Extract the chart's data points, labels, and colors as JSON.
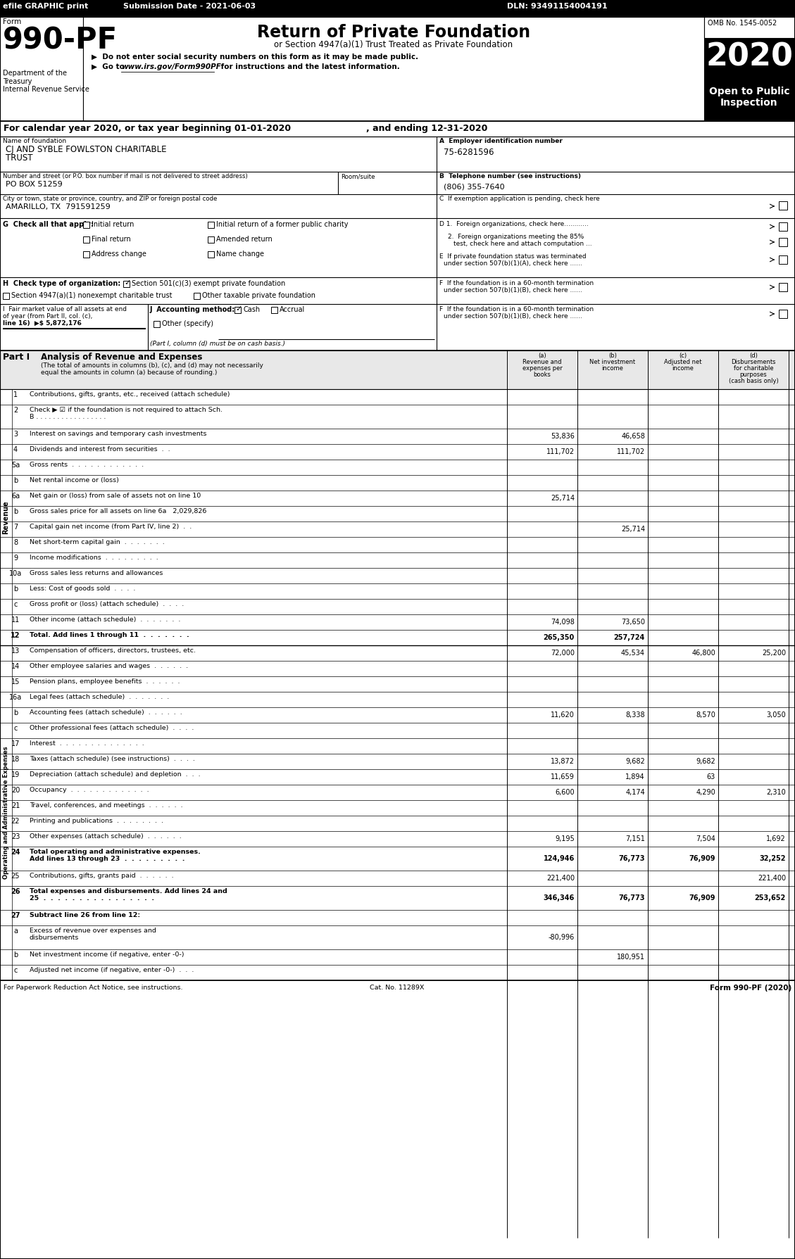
{
  "title_bar": {
    "efile": "efile GRAPHIC print",
    "submission": "Submission Date - 2021-06-03",
    "dln": "DLN: 93491154004191"
  },
  "revenue_rows": [
    {
      "num": "1",
      "label": "Contributions, gifts, grants, etc., received (attach schedule)",
      "a": "",
      "b": "",
      "c": "",
      "d": ""
    },
    {
      "num": "2",
      "label": "Check ▶ ☑ if the foundation is not required to attach Sch.\nB . . . . . . . . . . . . . . . . .",
      "a": "",
      "b": "",
      "c": "",
      "d": "",
      "tall": true
    },
    {
      "num": "3",
      "label": "Interest on savings and temporary cash investments",
      "a": "53,836",
      "b": "46,658",
      "c": "",
      "d": ""
    },
    {
      "num": "4",
      "label": "Dividends and interest from securities  .  .",
      "a": "111,702",
      "b": "111,702",
      "c": "",
      "d": ""
    },
    {
      "num": "5a",
      "label": "Gross rents  .  .  .  .  .  .  .  .  .  .  .  .",
      "a": "",
      "b": "",
      "c": "",
      "d": ""
    },
    {
      "num": "b",
      "label": "Net rental income or (loss)",
      "a": "",
      "b": "",
      "c": "",
      "d": ""
    },
    {
      "num": "6a",
      "label": "Net gain or (loss) from sale of assets not on line 10",
      "a": "25,714",
      "b": "",
      "c": "",
      "d": ""
    },
    {
      "num": "b",
      "label": "Gross sales price for all assets on line 6a   2,029,826",
      "a": "",
      "b": "",
      "c": "",
      "d": ""
    },
    {
      "num": "7",
      "label": "Capital gain net income (from Part IV, line 2)  .  .",
      "a": "",
      "b": "25,714",
      "c": "",
      "d": ""
    },
    {
      "num": "8",
      "label": "Net short-term capital gain  .  .  .  .  .  .  .",
      "a": "",
      "b": "",
      "c": "",
      "d": ""
    },
    {
      "num": "9",
      "label": "Income modifications  .  .  .  .  .  .  .  .  .",
      "a": "",
      "b": "",
      "c": "",
      "d": ""
    },
    {
      "num": "10a",
      "label": "Gross sales less returns and allowances",
      "a": "",
      "b": "",
      "c": "",
      "d": ""
    },
    {
      "num": "b",
      "label": "Less: Cost of goods sold  .  .  .  .",
      "a": "",
      "b": "",
      "c": "",
      "d": ""
    },
    {
      "num": "c",
      "label": "Gross profit or (loss) (attach schedule)  .  .  .  .",
      "a": "",
      "b": "",
      "c": "",
      "d": ""
    },
    {
      "num": "11",
      "label": "Other income (attach schedule)  .  .  .  .  .  .  .",
      "a": "74,098",
      "b": "73,650",
      "c": "",
      "d": ""
    },
    {
      "num": "12",
      "label": "Total. Add lines 1 through 11  .  .  .  .  .  .  .",
      "a": "265,350",
      "b": "257,724",
      "c": "",
      "d": "",
      "bold": true
    }
  ],
  "expense_rows": [
    {
      "num": "13",
      "label": "Compensation of officers, directors, trustees, etc.",
      "a": "72,000",
      "b": "45,534",
      "c": "46,800",
      "d": "25,200"
    },
    {
      "num": "14",
      "label": "Other employee salaries and wages  .  .  .  .  .  .",
      "a": "",
      "b": "",
      "c": "",
      "d": ""
    },
    {
      "num": "15",
      "label": "Pension plans, employee benefits  .  .  .  .  .  .",
      "a": "",
      "b": "",
      "c": "",
      "d": ""
    },
    {
      "num": "16a",
      "label": "Legal fees (attach schedule)  .  .  .  .  .  .  .",
      "a": "",
      "b": "",
      "c": "",
      "d": ""
    },
    {
      "num": "b",
      "label": "Accounting fees (attach schedule)  .  .  .  .  .  .",
      "a": "11,620",
      "b": "8,338",
      "c": "8,570",
      "d": "3,050"
    },
    {
      "num": "c",
      "label": "Other professional fees (attach schedule)  .  .  .  .",
      "a": "",
      "b": "",
      "c": "",
      "d": ""
    },
    {
      "num": "17",
      "label": "Interest  .  .  .  .  .  .  .  .  .  .  .  .  .  .",
      "a": "",
      "b": "",
      "c": "",
      "d": ""
    },
    {
      "num": "18",
      "label": "Taxes (attach schedule) (see instructions)  .  .  .  .",
      "a": "13,872",
      "b": "9,682",
      "c": "9,682",
      "d": ""
    },
    {
      "num": "19",
      "label": "Depreciation (attach schedule) and depletion  .  .  .",
      "a": "11,659",
      "b": "1,894",
      "c": "63",
      "d": ""
    },
    {
      "num": "20",
      "label": "Occupancy  .  .  .  .  .  .  .  .  .  .  .  .  .",
      "a": "6,600",
      "b": "4,174",
      "c": "4,290",
      "d": "2,310"
    },
    {
      "num": "21",
      "label": "Travel, conferences, and meetings  .  .  .  .  .  .",
      "a": "",
      "b": "",
      "c": "",
      "d": ""
    },
    {
      "num": "22",
      "label": "Printing and publications  .  .  .  .  .  .  .  .",
      "a": "",
      "b": "",
      "c": "",
      "d": ""
    },
    {
      "num": "23",
      "label": "Other expenses (attach schedule)  .  .  .  .  .  .",
      "a": "9,195",
      "b": "7,151",
      "c": "7,504",
      "d": "1,692"
    },
    {
      "num": "24",
      "label": "Total operating and administrative expenses.\nAdd lines 13 through 23  .  .  .  .  .  .  .  .  .",
      "a": "124,946",
      "b": "76,773",
      "c": "76,909",
      "d": "32,252",
      "bold": true,
      "tall": true
    },
    {
      "num": "25",
      "label": "Contributions, gifts, grants paid  .  .  .  .  .  .",
      "a": "221,400",
      "b": "",
      "c": "",
      "d": "221,400"
    },
    {
      "num": "26",
      "label": "Total expenses and disbursements. Add lines 24 and\n25  .  .  .  .  .  .  .  .  .  .  .  .  .  .  .  .",
      "a": "346,346",
      "b": "76,773",
      "c": "76,909",
      "d": "253,652",
      "bold": true,
      "tall": true
    },
    {
      "num": "27",
      "label": "Subtract line 26 from line 12:",
      "a": "",
      "b": "",
      "c": "",
      "d": "",
      "bold": true
    },
    {
      "num": "a",
      "label": "Excess of revenue over expenses and\ndisbursements",
      "a": "-80,996",
      "b": "",
      "c": "",
      "d": "",
      "tall": true
    },
    {
      "num": "b",
      "label": "Net investment income (if negative, enter -0-)",
      "a": "",
      "b": "180,951",
      "c": "",
      "d": ""
    },
    {
      "num": "c",
      "label": "Adjusted net income (if negative, enter -0-)  .  .  .",
      "a": "",
      "b": "",
      "c": "",
      "d": ""
    }
  ],
  "footer_left": "For Paperwork Reduction Act Notice, see instructions.",
  "footer_cat": "Cat. No. 11289X",
  "footer_right": "Form 990-PF (2020)"
}
